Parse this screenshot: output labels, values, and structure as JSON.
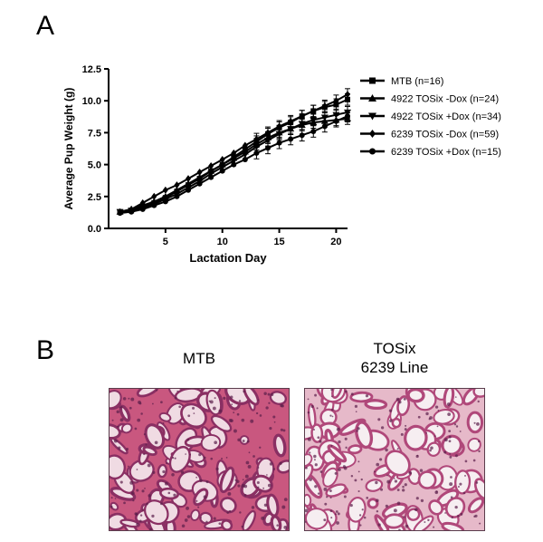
{
  "figure": {
    "panel_a_letter": "A",
    "panel_b_letter": "B"
  },
  "chart_data": {
    "type": "line",
    "xlabel": "Lactation Day",
    "ylabel": "Average  Pup Weight (g)",
    "xlim": [
      0,
      21
    ],
    "ylim": [
      0,
      12.5
    ],
    "xticks": [
      "5",
      "10",
      "15",
      "20"
    ],
    "yticks": [
      "0.0",
      "2.5",
      "5.0",
      "7.5",
      "10.0",
      "12.5"
    ],
    "legend_position": "right",
    "series": [
      {
        "name": "MTB (n=16)",
        "marker": "square",
        "x": [
          1,
          2,
          3,
          4,
          5,
          6,
          7,
          8,
          9,
          10,
          11,
          12,
          13,
          14,
          15,
          16,
          17,
          18,
          19,
          20,
          21
        ],
        "y": [
          1.3,
          1.4,
          1.7,
          2.0,
          2.4,
          2.9,
          3.4,
          3.9,
          4.5,
          5.0,
          5.6,
          6.2,
          6.8,
          7.4,
          7.9,
          8.3,
          8.8,
          9.2,
          9.5,
          9.7,
          10.1
        ]
      },
      {
        "name": "4922 TOSix -Dox (n=24)",
        "marker": "triangle-up",
        "x": [
          1,
          2,
          3,
          4,
          5,
          6,
          7,
          8,
          9,
          10,
          11,
          12,
          13,
          14,
          15,
          16,
          17,
          18,
          19,
          20,
          21
        ],
        "y": [
          1.3,
          1.5,
          1.8,
          2.1,
          2.5,
          3.0,
          3.5,
          4.0,
          4.5,
          5.0,
          5.5,
          6.0,
          6.6,
          7.1,
          7.5,
          7.8,
          8.1,
          8.3,
          8.4,
          8.5,
          8.6
        ]
      },
      {
        "name": "4922 TOSix +Dox (n=34)",
        "marker": "triangle-down",
        "x": [
          1,
          2,
          3,
          4,
          5,
          6,
          7,
          8,
          9,
          10,
          11,
          12,
          13,
          14,
          15,
          16,
          17,
          18,
          19,
          20,
          21
        ],
        "y": [
          1.3,
          1.4,
          1.6,
          1.9,
          2.3,
          2.7,
          3.2,
          3.7,
          4.3,
          4.8,
          5.3,
          5.8,
          6.4,
          6.9,
          7.4,
          7.8,
          8.2,
          8.5,
          8.7,
          8.9,
          9.1
        ]
      },
      {
        "name": "6239 TOSix -Dox (n=59)",
        "marker": "diamond",
        "x": [
          1,
          2,
          3,
          4,
          5,
          6,
          7,
          8,
          9,
          10,
          11,
          12,
          13,
          14,
          15,
          16,
          17,
          18,
          19,
          20,
          21
        ],
        "y": [
          1.3,
          1.5,
          2.0,
          2.5,
          3.0,
          3.4,
          3.9,
          4.4,
          4.9,
          5.4,
          5.9,
          6.5,
          7.0,
          7.5,
          8.0,
          8.4,
          8.8,
          9.2,
          9.6,
          10.0,
          10.5
        ]
      },
      {
        "name": "6239 TOSix +Dox (n=15)",
        "marker": "circle",
        "x": [
          1,
          2,
          3,
          4,
          5,
          6,
          7,
          8,
          9,
          10,
          11,
          12,
          13,
          14,
          15,
          16,
          17,
          18,
          19,
          20,
          21
        ],
        "y": [
          1.2,
          1.3,
          1.5,
          1.8,
          2.1,
          2.5,
          3.0,
          3.5,
          4.0,
          4.5,
          5.0,
          5.4,
          5.9,
          6.3,
          6.7,
          7.0,
          7.3,
          7.6,
          8.0,
          8.4,
          8.8
        ]
      }
    ]
  },
  "images": {
    "left_caption": "MTB",
    "right_caption_line1": "TOSix",
    "right_caption_line2": "6239 Line"
  }
}
